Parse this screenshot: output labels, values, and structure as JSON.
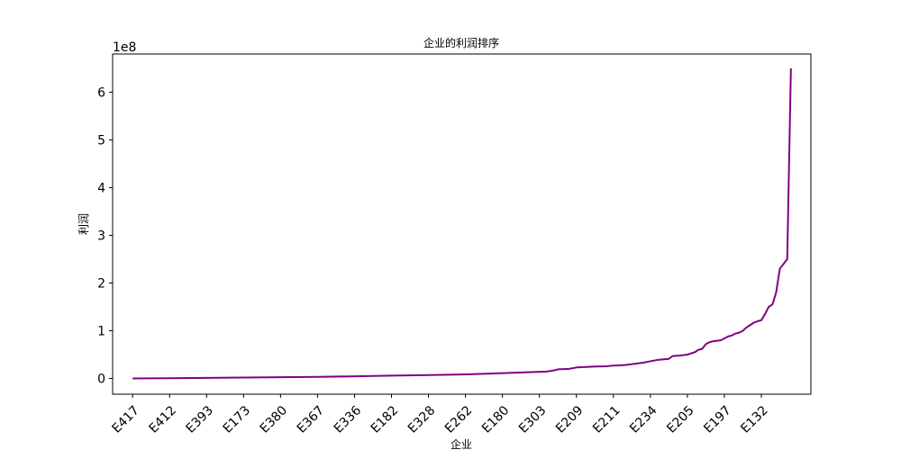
{
  "chart_data": {
    "type": "line",
    "title": "企业的利润排序",
    "xlabel": "企业",
    "ylabel": "利润",
    "y_exponent_label": "1e8",
    "line_color": "#800080",
    "grid": false,
    "ylim": [
      -0.33,
      6.8
    ],
    "yticks": [
      0,
      1,
      2,
      3,
      4,
      5,
      6
    ],
    "xlim": [
      -5.4,
      183.4
    ],
    "xticks": [
      {
        "index": 0,
        "label": "E417"
      },
      {
        "index": 10,
        "label": "E412"
      },
      {
        "index": 20,
        "label": "E393"
      },
      {
        "index": 30,
        "label": "E173"
      },
      {
        "index": 40,
        "label": "E380"
      },
      {
        "index": 50,
        "label": "E367"
      },
      {
        "index": 60,
        "label": "E336"
      },
      {
        "index": 70,
        "label": "E182"
      },
      {
        "index": 80,
        "label": "E328"
      },
      {
        "index": 90,
        "label": "E262"
      },
      {
        "index": 100,
        "label": "E180"
      },
      {
        "index": 110,
        "label": "E303"
      },
      {
        "index": 120,
        "label": "E209"
      },
      {
        "index": 130,
        "label": "E211"
      },
      {
        "index": 140,
        "label": "E234"
      },
      {
        "index": 150,
        "label": "E205"
      },
      {
        "index": 160,
        "label": "E197"
      },
      {
        "index": 170,
        "label": "E132"
      }
    ],
    "series": [
      {
        "points": [
          [
            0,
            0.0
          ],
          [
            10,
            0.006
          ],
          [
            20,
            0.012
          ],
          [
            30,
            0.018
          ],
          [
            40,
            0.025
          ],
          [
            50,
            0.032
          ],
          [
            60,
            0.045
          ],
          [
            70,
            0.06
          ],
          [
            80,
            0.07
          ],
          [
            90,
            0.085
          ],
          [
            100,
            0.11
          ],
          [
            110,
            0.14
          ],
          [
            112,
            0.145
          ],
          [
            114,
            0.17
          ],
          [
            115,
            0.19
          ],
          [
            118,
            0.2
          ],
          [
            120,
            0.23
          ],
          [
            125,
            0.25
          ],
          [
            128,
            0.255
          ],
          [
            130,
            0.27
          ],
          [
            133,
            0.28
          ],
          [
            135,
            0.3
          ],
          [
            138,
            0.33
          ],
          [
            140,
            0.36
          ],
          [
            142,
            0.39
          ],
          [
            145,
            0.41
          ],
          [
            146,
            0.47
          ],
          [
            148,
            0.48
          ],
          [
            150,
            0.5
          ],
          [
            152,
            0.55
          ],
          [
            153,
            0.6
          ],
          [
            154,
            0.62
          ],
          [
            155,
            0.72
          ],
          [
            156,
            0.76
          ],
          [
            157,
            0.78
          ],
          [
            159,
            0.8
          ],
          [
            160,
            0.84
          ],
          [
            161,
            0.88
          ],
          [
            162,
            0.9
          ],
          [
            163,
            0.94
          ],
          [
            164,
            0.96
          ],
          [
            165,
            1.0
          ],
          [
            166,
            1.07
          ],
          [
            167,
            1.12
          ],
          [
            168,
            1.17
          ],
          [
            169,
            1.2
          ],
          [
            170,
            1.22
          ],
          [
            171,
            1.35
          ],
          [
            172,
            1.5
          ],
          [
            173,
            1.55
          ],
          [
            174,
            1.8
          ],
          [
            175,
            2.3
          ],
          [
            176,
            2.4
          ],
          [
            177,
            2.5
          ],
          [
            178,
            6.5
          ]
        ]
      }
    ]
  }
}
